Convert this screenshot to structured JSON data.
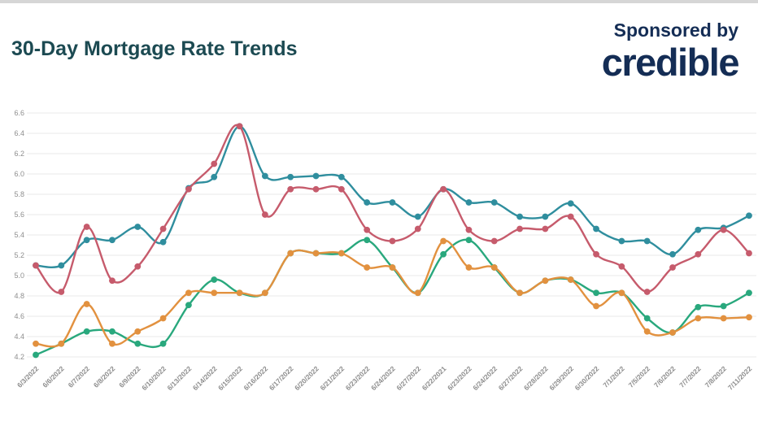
{
  "page": {
    "background": "#ffffff",
    "top_strip_color": "#d6d6d6"
  },
  "header": {
    "title": "30-Day Mortgage Rate Trends",
    "title_color": "#1c4a52",
    "sponsor_line": "Sponsored by",
    "sponsor_logo": "credible",
    "sponsor_color": "#142d55"
  },
  "chart_data": {
    "type": "line",
    "title": "30-Day Mortgage Rate Trends",
    "xlabel": "",
    "ylabel": "",
    "ylim": [
      4.2,
      6.6
    ],
    "ytick_step": 0.2,
    "y_tick_labels": [
      "6.6",
      "6.4",
      "6.2",
      "6.0",
      "5.8",
      "5.6",
      "5.4",
      "5.2",
      "5.0",
      "4.8",
      "4.6",
      "4.4",
      "4.2"
    ],
    "grid": true,
    "legend_position": "none",
    "grid_color": "#e9e9e9",
    "axis_label_color": "#8e8e8e",
    "x_labels": [
      "6/3/2022",
      "6/6/2022",
      "6/7/2022",
      "6/8/2022",
      "6/9/2022",
      "6/10/2022",
      "6/13/2022",
      "6/14/2022",
      "6/15/2022",
      "6/16/2022",
      "6/17/2022",
      "6/20/2022",
      "6/21/2022",
      "6/23/2022",
      "6/24/2022",
      "6/27/2022",
      "6/22/2021",
      "6/23/2022",
      "6/24/2022",
      "6/27/2022",
      "6/28/2022",
      "6/29/2022",
      "6/30/2022",
      "7/1/2022",
      "7/5/2022",
      "7/6/2022",
      "7/7/2022",
      "7/8/2022",
      "7/11/2022"
    ],
    "series": [
      {
        "name": "teal-series",
        "color": "#2f8e9e",
        "values": [
          5.1,
          5.1,
          5.35,
          5.35,
          5.48,
          5.33,
          5.86,
          5.97,
          6.47,
          5.98,
          5.97,
          5.98,
          5.97,
          5.72,
          5.72,
          5.58,
          5.85,
          5.72,
          5.72,
          5.58,
          5.58,
          5.71,
          5.46,
          5.34,
          5.34,
          5.21,
          5.45,
          5.47,
          5.59
        ]
      },
      {
        "name": "green-series",
        "color": "#29a87d",
        "values": [
          4.22,
          4.33,
          4.45,
          4.45,
          4.33,
          4.33,
          4.71,
          4.96,
          4.83,
          4.83,
          5.22,
          5.22,
          5.22,
          5.35,
          5.08,
          4.83,
          5.21,
          5.35,
          5.08,
          4.83,
          4.95,
          4.96,
          4.83,
          4.83,
          4.58,
          4.44,
          4.69,
          4.7,
          4.83
        ]
      },
      {
        "name": "orange-series",
        "color": "#e2913f",
        "values": [
          4.33,
          4.33,
          4.72,
          4.33,
          4.45,
          4.58,
          4.83,
          4.83,
          4.83,
          4.83,
          5.22,
          5.22,
          5.22,
          5.08,
          5.08,
          4.83,
          5.34,
          5.08,
          5.08,
          4.83,
          4.95,
          4.96,
          4.7,
          4.83,
          4.45,
          4.44,
          4.58,
          4.58,
          4.59
        ]
      },
      {
        "name": "rose-series",
        "color": "#c65b6c",
        "values": [
          5.1,
          4.84,
          5.48,
          4.95,
          5.09,
          5.46,
          5.85,
          6.1,
          6.47,
          5.6,
          5.85,
          5.85,
          5.85,
          5.45,
          5.34,
          5.46,
          5.85,
          5.45,
          5.34,
          5.46,
          5.46,
          5.58,
          5.21,
          5.09,
          4.84,
          5.08,
          5.21,
          5.45,
          5.22
        ]
      }
    ]
  }
}
